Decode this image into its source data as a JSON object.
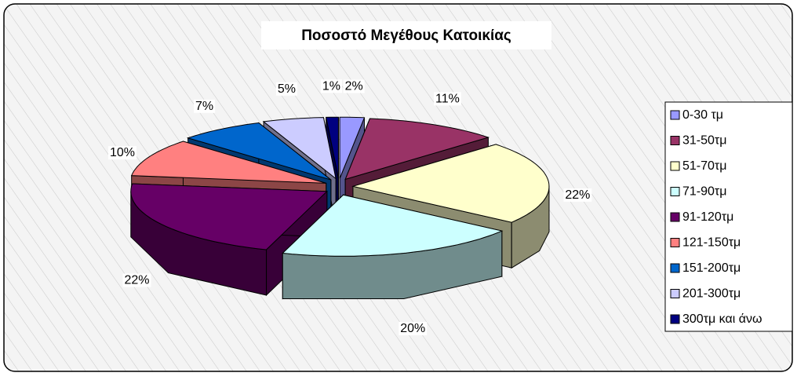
{
  "chart_data": {
    "type": "pie",
    "title": "Ποσοστό Μεγέθους Κατοικίας",
    "categories": [
      "0-30 τμ",
      "31-50τμ",
      "51-70τμ",
      "71-90τμ",
      "91-120τμ",
      "121-150τμ",
      "151-200τμ",
      "201-300τμ",
      "300τμ και άνω"
    ],
    "values": [
      2,
      11,
      22,
      20,
      22,
      10,
      7,
      5,
      1
    ],
    "value_labels": [
      "2%",
      "11%",
      "22%",
      "20%",
      "22%",
      "10%",
      "7%",
      "5%",
      "1%"
    ],
    "colors": [
      "#9999ff",
      "#993366",
      "#ffffcc",
      "#ccffff",
      "#660066",
      "#ff8080",
      "#0066cc",
      "#ccccff",
      "#000080"
    ],
    "legend": "right"
  }
}
